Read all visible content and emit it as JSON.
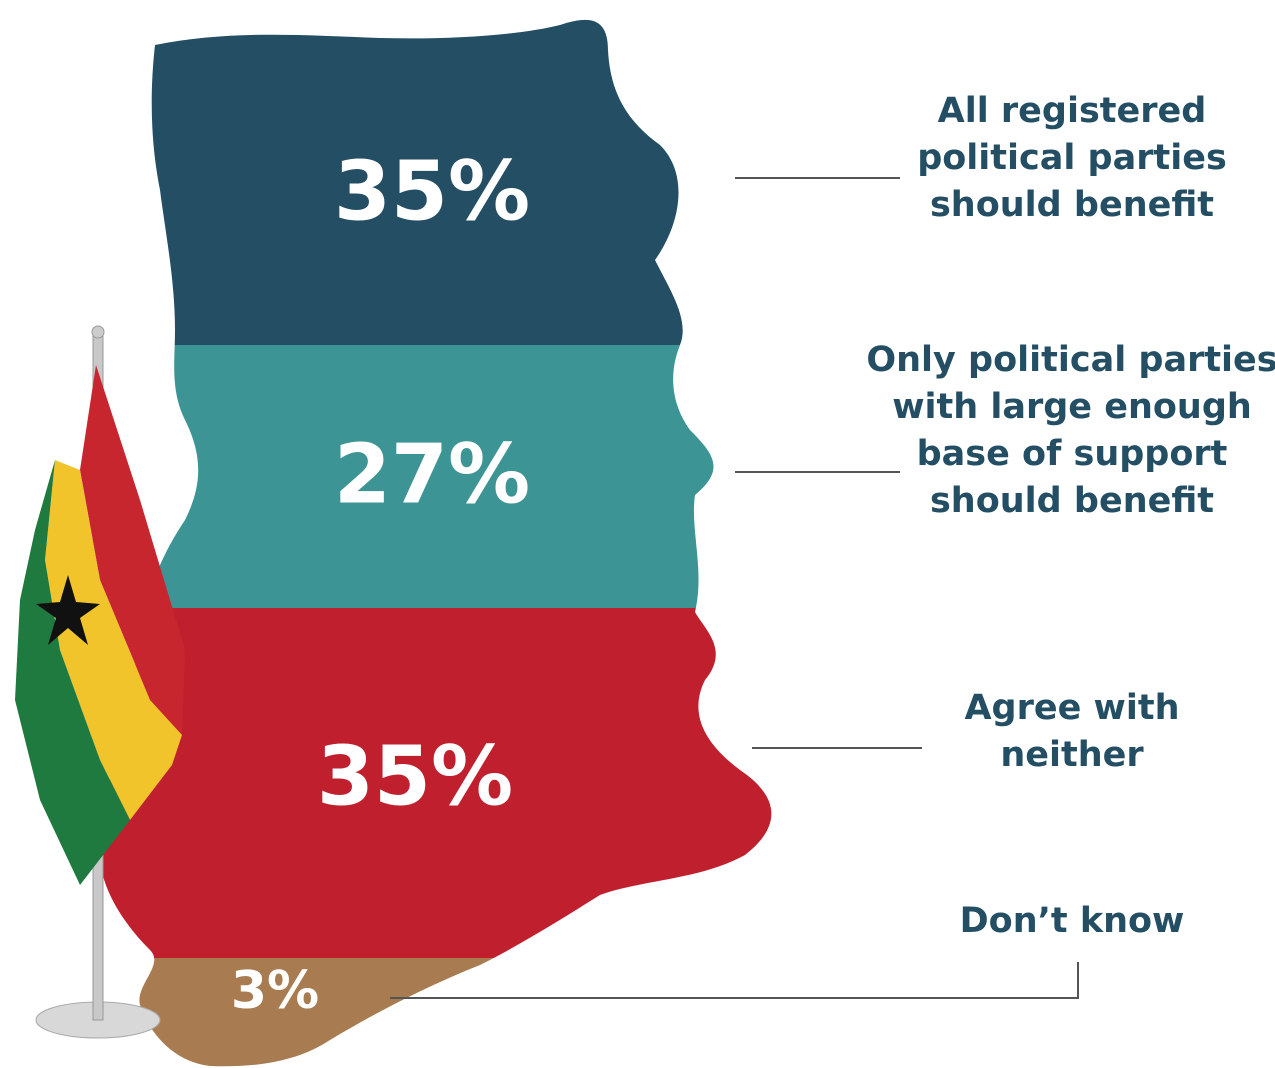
{
  "chart_data": {
    "type": "map",
    "categories": [
      "All registered\npolitical parties\nshould benefit",
      "Only political parties\nwith large enough\nbase of support\nshould benefit",
      "Agree with\nneither",
      "Don’t know"
    ],
    "values": [
      35,
      27,
      35,
      3
    ],
    "value_labels": [
      "35%",
      "27%",
      "35%",
      "3%"
    ],
    "colors": [
      "#234e63",
      "#3d9494",
      "#c0202e",
      "#a87c50"
    ]
  }
}
